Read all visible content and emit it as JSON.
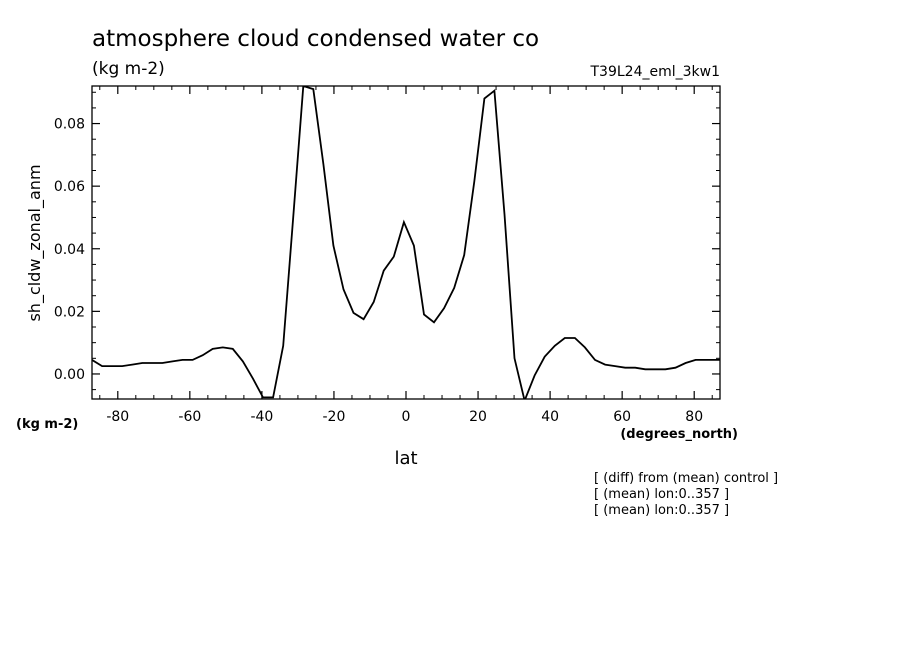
{
  "chart_data": {
    "type": "line",
    "title": "atmosphere cloud condensed water co",
    "units_label": "(kg m-2)",
    "run_label": "T39L24_eml_3kw1",
    "ylabel": "sh_cldw_zonal_anm",
    "xlabel": "lat",
    "x_units": "(degrees_north)",
    "y_units": "(kg m-2)",
    "xlim": [
      -87.16,
      87.16
    ],
    "ylim": [
      -0.008,
      0.092
    ],
    "x_ticks": [
      -80,
      -60,
      -40,
      -20,
      0,
      20,
      40,
      60,
      80
    ],
    "x_tick_labels": [
      "-80",
      "-60",
      "-40",
      "-20",
      "0",
      "20",
      "40",
      "60",
      "80"
    ],
    "y_ticks": [
      0.0,
      0.02,
      0.04,
      0.06,
      0.08
    ],
    "y_tick_labels": [
      "0.00",
      "0.02",
      "0.04",
      "0.06",
      "0.08"
    ],
    "series": [
      {
        "x": [
          -87.16,
          -84.37,
          -81.58,
          -78.78,
          -75.99,
          -73.2,
          -70.41,
          -67.61,
          -64.82,
          -62.03,
          -59.24,
          -56.44,
          -53.65,
          -50.86,
          -48.07,
          -45.27,
          -42.48,
          -39.69,
          -36.9,
          -34.1,
          -31.31,
          -28.52,
          -25.73,
          -22.93,
          -20.14,
          -17.35,
          -14.56,
          -11.76,
          -8.97,
          -6.18,
          -3.39,
          -0.59,
          2.2,
          4.99,
          7.78,
          10.58,
          13.37,
          16.16,
          18.95,
          21.75,
          24.54,
          27.33,
          30.12,
          32.92,
          35.71,
          38.5,
          41.29,
          44.09,
          46.88,
          49.67,
          52.46,
          55.26,
          58.05,
          60.84,
          63.63,
          66.43,
          69.22,
          72.01,
          74.8,
          77.6,
          80.39,
          83.18,
          85.97,
          87.16
        ],
        "values": [
          0.0045,
          0.0025,
          0.0025,
          0.0025,
          0.003,
          0.0035,
          0.0035,
          0.0035,
          0.004,
          0.0045,
          0.0045,
          0.006,
          0.008,
          0.0085,
          0.008,
          0.004,
          -0.0015,
          -0.0075,
          -0.0075,
          0.009,
          0.05,
          0.092,
          0.091,
          0.067,
          0.041,
          0.027,
          0.0195,
          0.0175,
          0.023,
          0.033,
          0.0375,
          0.0485,
          0.041,
          0.019,
          0.0165,
          0.021,
          0.0275,
          0.038,
          0.0615,
          0.088,
          0.0905,
          0.051,
          0.005,
          -0.0085,
          -0.0005,
          0.0055,
          0.009,
          0.0115,
          0.0115,
          0.0085,
          0.0045,
          0.003,
          0.0025,
          0.002,
          0.002,
          0.0015,
          0.0015,
          0.0015,
          0.002,
          0.0035,
          0.0045,
          0.0045,
          0.0045,
          0.0045
        ]
      }
    ]
  },
  "notes": [
    "[ (diff) from (mean) control ]",
    "[ (mean) lon:0..357 ]",
    "[ (mean) lon:0..357 ]"
  ]
}
